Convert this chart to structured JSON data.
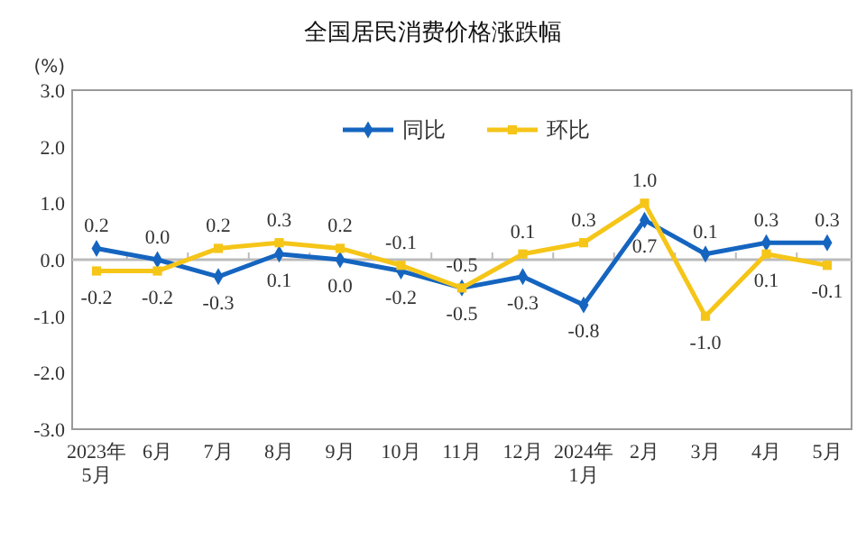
{
  "chart_data": {
    "type": "line",
    "title": "全国居民消费价格涨跌幅",
    "ylabel": "(%)",
    "categories": [
      "2023年5月",
      "6月",
      "7月",
      "8月",
      "9月",
      "10月",
      "11月",
      "12月",
      "2024年1月",
      "2月",
      "3月",
      "4月",
      "5月"
    ],
    "series": [
      {
        "name": "同比",
        "color": "#1565c0",
        "marker": "diamond",
        "values": [
          0.2,
          0.0,
          -0.3,
          0.1,
          0.0,
          -0.2,
          -0.5,
          -0.3,
          -0.8,
          0.7,
          0.1,
          0.3,
          0.3
        ],
        "value_labels": [
          "0.2",
          "0.0",
          "-0.3",
          "0.1",
          "0.0",
          "-0.2",
          "-0.5",
          "-0.3",
          "-0.8",
          "0.7",
          "0.1",
          "0.3",
          "0.3"
        ]
      },
      {
        "name": "环比",
        "color": "#f5c518",
        "marker": "square",
        "values": [
          -0.2,
          -0.2,
          0.2,
          0.3,
          0.2,
          -0.1,
          -0.5,
          0.1,
          0.3,
          1.0,
          -1.0,
          0.1,
          -0.1
        ],
        "value_labels": [
          "-0.2",
          "-0.2",
          "0.2",
          "0.3",
          "0.2",
          "-0.1",
          "-0.5",
          "0.1",
          "0.3",
          "1.0",
          "-1.0",
          "0.1",
          "-0.1"
        ]
      }
    ],
    "ylim": [
      -3,
      3
    ],
    "yticks": [
      {
        "value": -3,
        "label": "-3.0"
      },
      {
        "value": -2,
        "label": "-2.0"
      },
      {
        "value": -1,
        "label": "-1.0"
      },
      {
        "value": 0,
        "label": "0.0"
      },
      {
        "value": 1,
        "label": "1.0"
      },
      {
        "value": 2,
        "label": "2.0"
      },
      {
        "value": 3,
        "label": "3.0"
      }
    ],
    "legend": "top",
    "line_style": "solid"
  }
}
